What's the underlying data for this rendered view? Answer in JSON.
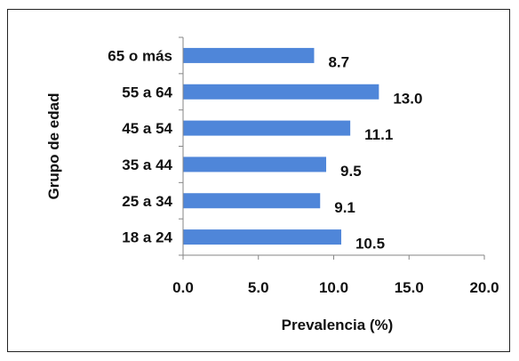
{
  "chart_data": {
    "type": "bar",
    "orientation": "horizontal",
    "categories": [
      "18 a 24",
      "25 a 34",
      "35 a 44",
      "45 a 54",
      "55 a 64",
      "65 o más"
    ],
    "values": [
      10.5,
      9.1,
      9.5,
      11.1,
      13.0,
      8.7
    ],
    "value_labels": [
      "10.5",
      "9.1",
      "9.5",
      "11.1",
      "13.0",
      "8.7"
    ],
    "xlabel": "Prevalencia (%)",
    "ylabel": "Grupo de edad",
    "xlim": [
      0,
      20
    ],
    "xticks": [
      "0.0",
      "5.0",
      "10.0",
      "15.0",
      "20.0"
    ],
    "grid": false,
    "legend": "none",
    "bar_color": "#4f86d9"
  }
}
